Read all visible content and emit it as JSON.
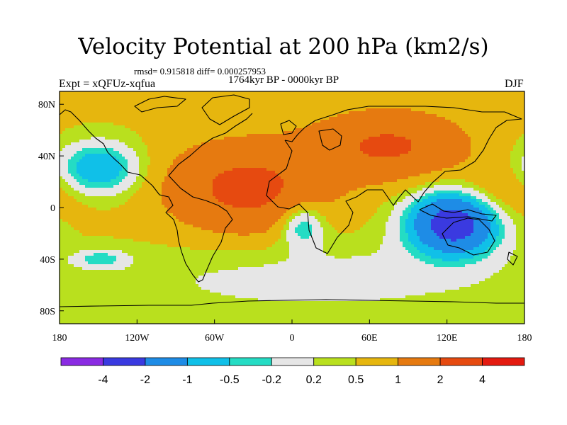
{
  "chart_data": {
    "type": "heatmap",
    "title": "Velocity Potential at 200 hPa (km2/s)",
    "stats_text": "rmsd= 0.915818 diff= 0.000257953",
    "period": "1764kyr BP - 0000kyr BP",
    "experiment": "Expt = xQFUz-xqfua",
    "season": "DJF",
    "xlim": [
      -180,
      180
    ],
    "ylim": [
      -90,
      90
    ],
    "x_ticks": [
      {
        "value": -180,
        "label": "180"
      },
      {
        "value": -120,
        "label": "120W"
      },
      {
        "value": -60,
        "label": "60W"
      },
      {
        "value": 0,
        "label": "0"
      },
      {
        "value": 60,
        "label": "60E"
      },
      {
        "value": 120,
        "label": "120E"
      },
      {
        "value": 180,
        "label": "180"
      }
    ],
    "y_ticks": [
      {
        "value": 80,
        "label": "80N"
      },
      {
        "value": 40,
        "label": "40N"
      },
      {
        "value": 0,
        "label": "0"
      },
      {
        "value": -40,
        "label": "40S"
      },
      {
        "value": -80,
        "label": "80S"
      }
    ],
    "levels": [
      -4,
      -2,
      -1,
      -0.5,
      -0.2,
      0.2,
      0.5,
      1,
      2,
      4
    ],
    "level_labels": [
      "-4",
      "-2",
      "-1",
      "-0.5",
      "-0.2",
      "0.2",
      "0.5",
      "1",
      "2",
      "4"
    ],
    "colors": [
      "#8a2be2",
      "#3a3ae0",
      "#1e8ce6",
      "#10c0e8",
      "#24dcc4",
      "#e6e6e6",
      "#b9e01e",
      "#e6b60e",
      "#e67a10",
      "#e64a10",
      "#e41a10"
    ],
    "features": [
      {
        "name": "pacific_low",
        "lon": -150,
        "lat": 30,
        "amp": -1.6,
        "slon": 22,
        "slat": 14
      },
      {
        "name": "sh_pacific_low",
        "lon": -148,
        "lat": -40,
        "amp": -0.9,
        "slon": 14,
        "slat": 5
      },
      {
        "name": "atlantic_africa_high",
        "lon": -35,
        "lat": 15,
        "amp": 1.8,
        "slon": 42,
        "slat": 24
      },
      {
        "name": "asia_high",
        "lon": 75,
        "lat": 48,
        "amp": 1.6,
        "slon": 40,
        "slat": 18
      },
      {
        "name": "maritime_low",
        "lon": 125,
        "lat": -12,
        "amp": -3.3,
        "slon": 24,
        "slat": 17
      },
      {
        "name": "africa_low",
        "lon": 8,
        "lat": -13,
        "amp": -1.3,
        "slon": 12,
        "slat": 12
      },
      {
        "name": "southern_ocean_low",
        "lon": 20,
        "lat": -55,
        "amp": -0.5,
        "slon": 120,
        "slat": 22
      },
      {
        "name": "west_pacific_high",
        "lon": 160,
        "lat": 10,
        "amp": 0.6,
        "slon": 25,
        "slat": 15
      }
    ]
  }
}
